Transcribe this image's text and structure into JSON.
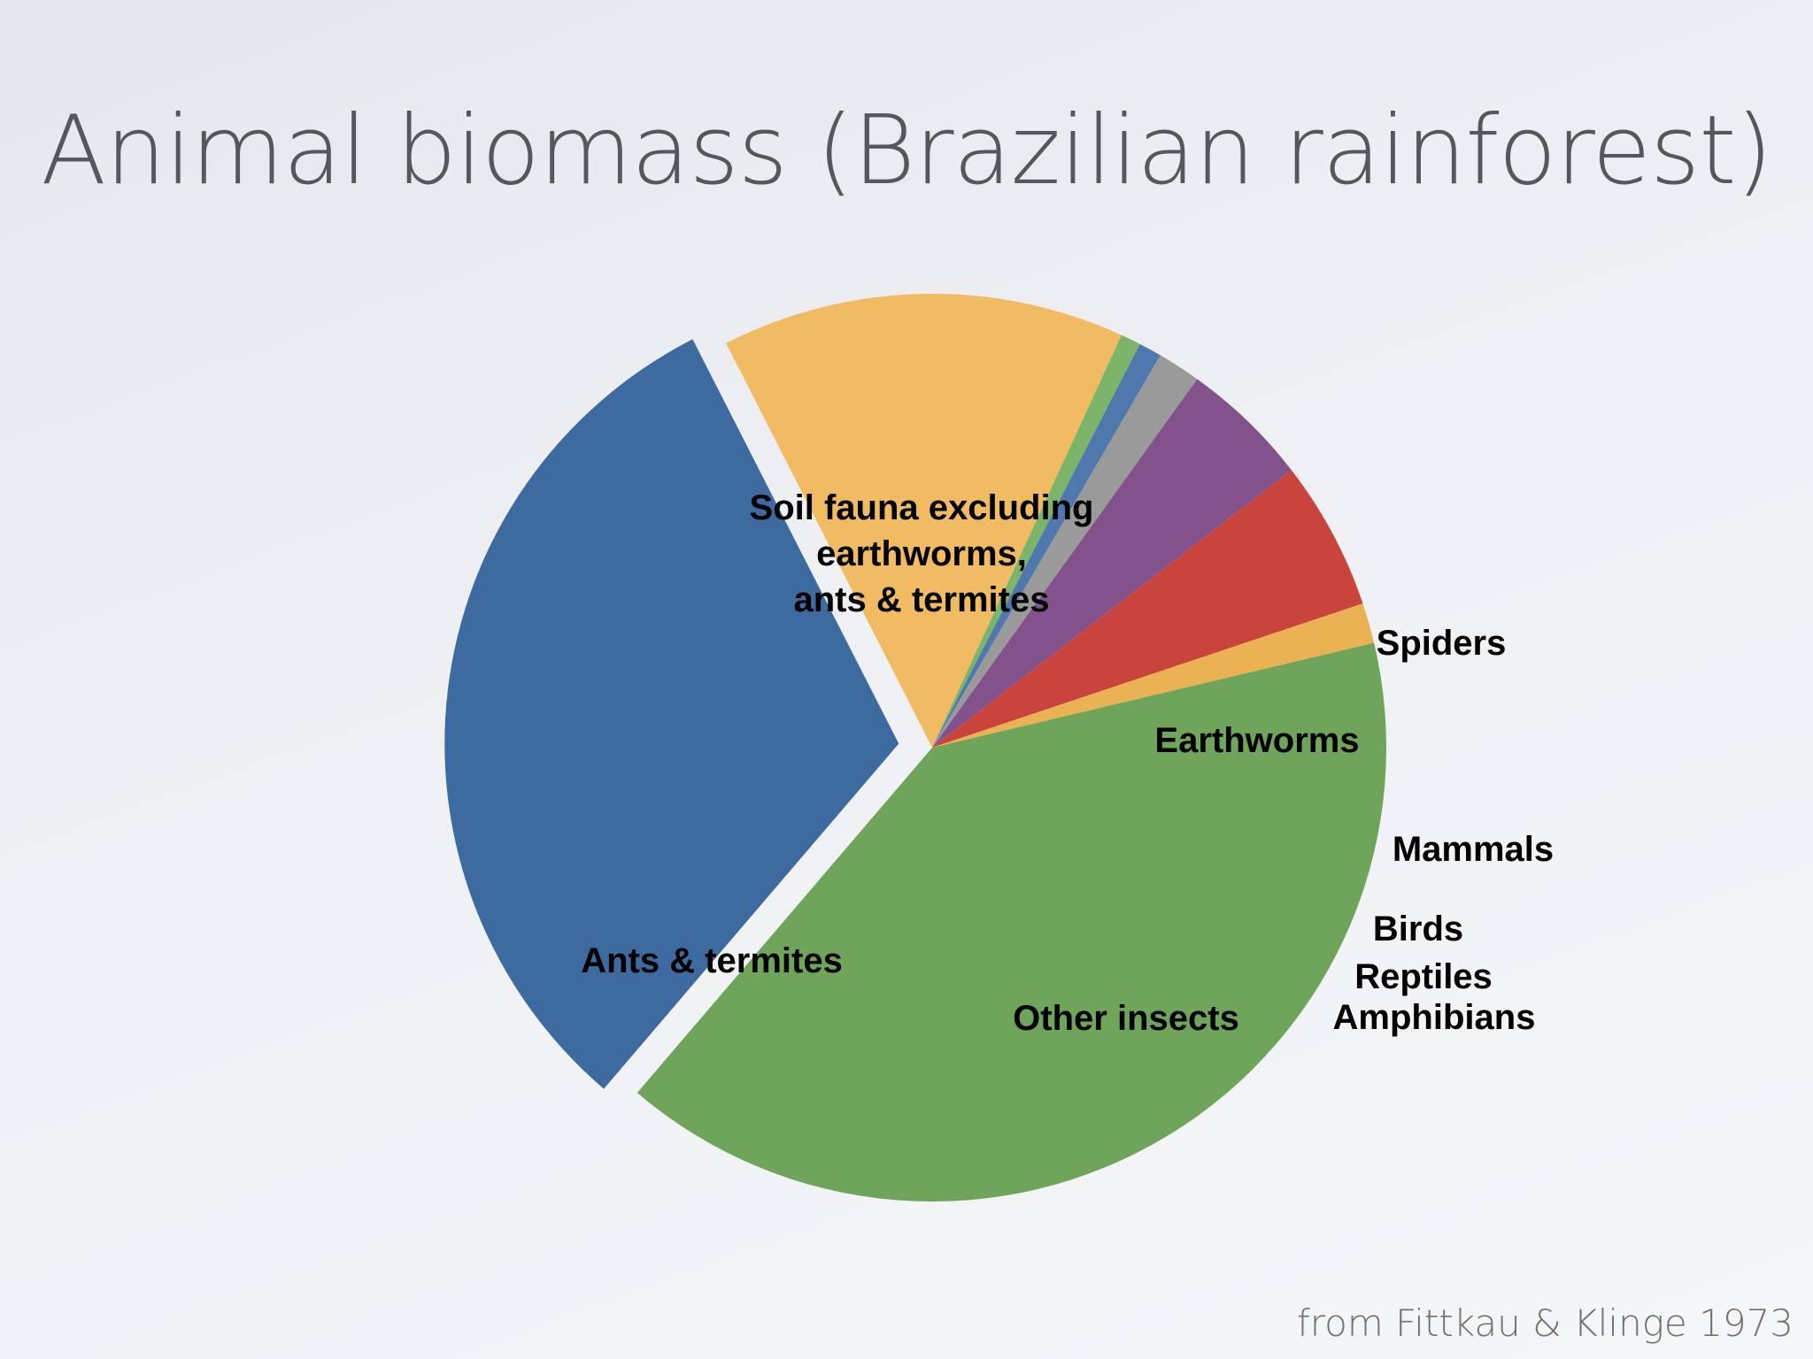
{
  "slide": {
    "title": "Animal biomass (Brazilian rainforest)",
    "source": "from Fittkau & Klinge 1973"
  },
  "chart_data": {
    "type": "pie",
    "title": "Animal biomass (Brazilian rainforest)",
    "unit": "percent of total",
    "exploded": [
      "Ants & termites"
    ],
    "slices": [
      {
        "name": "Soil fauna excluding earthworms, ants & termites",
        "label_lines": [
          "Soil fauna excluding",
          "earthworms,",
          "ants & termites"
        ],
        "value": 39.0,
        "color": "#6fa55a"
      },
      {
        "name": "Ants & termites",
        "label_lines": [
          "Ants & termites"
        ],
        "value": 30.5,
        "color": "#3d6a9f"
      },
      {
        "name": "Other insects",
        "label_lines": [
          "Other insects"
        ],
        "value": 14.0,
        "color": "#f0bb63"
      },
      {
        "name": "Amphibians",
        "label_lines": [
          "Amphibians"
        ],
        "value": 0.7,
        "color": "#7cb569"
      },
      {
        "name": "Reptiles",
        "label_lines": [
          "Reptiles"
        ],
        "value": 0.8,
        "color": "#4f79ad"
      },
      {
        "name": "Birds",
        "label_lines": [
          "Birds"
        ],
        "value": 1.5,
        "color": "#9a9a9a"
      },
      {
        "name": "Mammals",
        "label_lines": [
          "Mammals"
        ],
        "value": 4.5,
        "color": "#83528c"
      },
      {
        "name": "Earthworms",
        "label_lines": [
          "Earthworms"
        ],
        "value": 5.2,
        "color": "#c9443c"
      },
      {
        "name": "Spiders",
        "label_lines": [
          "Spiders"
        ],
        "value": 1.4,
        "color": "#eab253"
      }
    ]
  }
}
